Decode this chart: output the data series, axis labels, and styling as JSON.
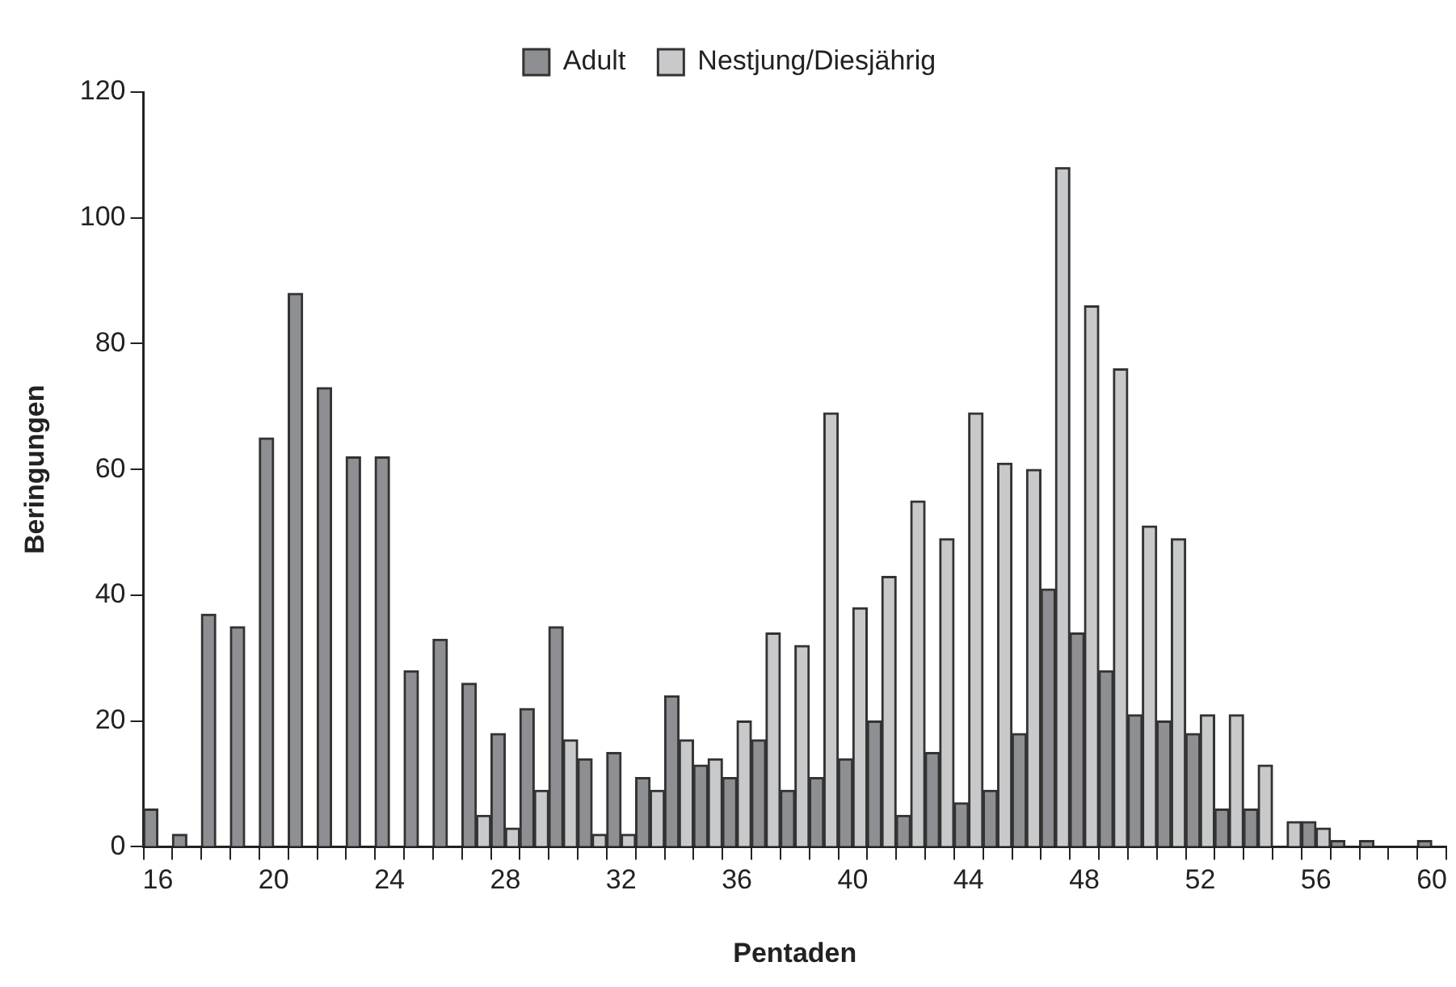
{
  "chart_data": {
    "type": "bar",
    "xlabel": "Pentaden",
    "ylabel": "Beringungen",
    "categories": [
      "16",
      null,
      null,
      null,
      "20",
      null,
      null,
      null,
      "24",
      null,
      null,
      null,
      "28",
      null,
      null,
      null,
      "32",
      null,
      null,
      null,
      "36",
      null,
      null,
      null,
      "40",
      null,
      null,
      null,
      "44",
      null,
      null,
      null,
      "48",
      null,
      null,
      null,
      "52",
      null,
      null,
      null,
      "56",
      null,
      null,
      null,
      "60"
    ],
    "series": [
      {
        "name": "Adult",
        "color": "#8e8f93",
        "values": [
          6,
          2,
          37,
          35,
          65,
          88,
          73,
          62,
          62,
          28,
          33,
          26,
          18,
          22,
          35,
          14,
          15,
          11,
          24,
          13,
          11,
          17,
          9,
          11,
          14,
          20,
          5,
          15,
          7,
          9,
          18,
          41,
          34,
          28,
          21,
          20,
          18,
          6,
          6,
          0,
          4,
          1,
          1,
          0,
          1
        ]
      },
      {
        "name": "Nestjung/Diesjährig",
        "color": "#c8c9cb",
        "values": [
          0,
          0,
          0,
          0,
          0,
          0,
          0,
          0,
          0,
          0,
          0,
          5,
          3,
          9,
          17,
          2,
          2,
          9,
          17,
          14,
          20,
          34,
          32,
          69,
          38,
          43,
          55,
          49,
          69,
          61,
          60,
          108,
          86,
          76,
          51,
          49,
          21,
          21,
          13,
          4,
          3,
          0,
          0,
          0,
          0
        ]
      }
    ],
    "ylim": [
      0,
      120
    ],
    "yticks": [
      0,
      20,
      40,
      60,
      80,
      100,
      120
    ],
    "grid": false,
    "legend": "top"
  }
}
